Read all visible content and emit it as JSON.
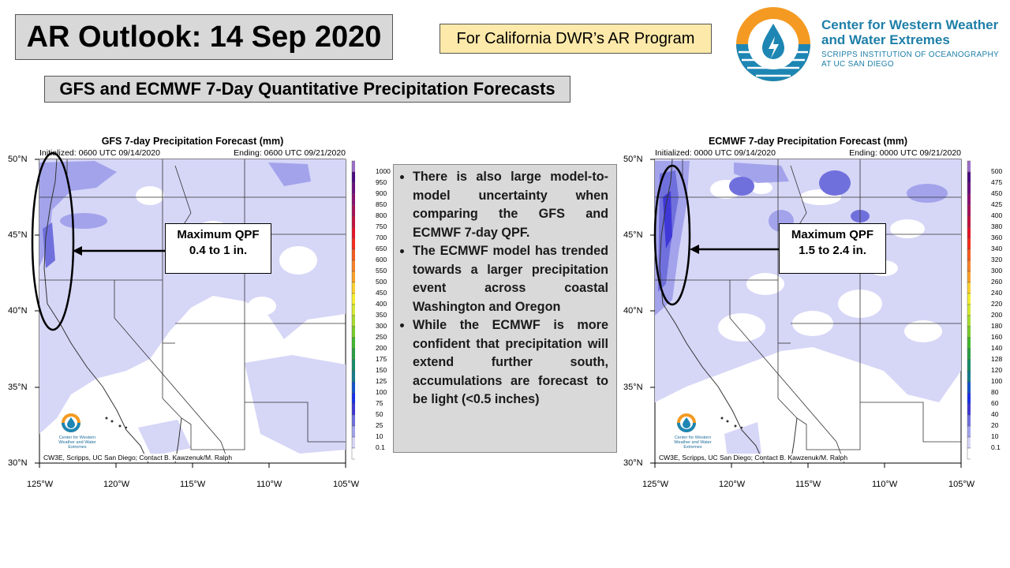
{
  "header": {
    "title": "AR Outlook: 14 Sep 2020",
    "program": "For California DWR’s AR Program",
    "subtitle": "GFS and ECMWF 7-Day Quantitative Precipitation Forecasts"
  },
  "org": {
    "name_line1": "Center for Western Weather",
    "name_line2": "and Water Extremes",
    "sub_line1": "SCRIPPS INSTITUTION OF OCEANOGRAPHY",
    "sub_line2": "AT UC SAN DIEGO",
    "logo_colors": {
      "orange": "#f49a22",
      "teal": "#1d86b3",
      "white": "#ffffff"
    }
  },
  "maps": {
    "lat_labels": [
      "50°N",
      "45°N",
      "40°N",
      "35°N",
      "30°N"
    ],
    "lon_labels": [
      "125°W",
      "120°W",
      "115°W",
      "110°W",
      "105°W"
    ],
    "credit": "CW3E, Scripps, UC San Diego; Contact B. Kawzenuk/M. Ralph",
    "mini_logo_text": "Center for Western Weather and Water Extremes",
    "gfs": {
      "title": "GFS 7-day Precipitation Forecast (mm)",
      "initialized": "Initialized: 0600 UTC 09/14/2020",
      "ending": "Ending: 0600 UTC 09/21/2020",
      "colorbar_levels": [
        "1000",
        "950",
        "900",
        "850",
        "800",
        "750",
        "700",
        "650",
        "600",
        "550",
        "500",
        "450",
        "400",
        "350",
        "300",
        "250",
        "200",
        "175",
        "150",
        "125",
        "100",
        "75",
        "50",
        "25",
        "10",
        "0.1"
      ],
      "callout_line1": "Maximum QPF",
      "callout_line2": "0.4 to 1 in."
    },
    "ecmwf": {
      "title": "ECMWF 7-day Precipitation Forecast (mm)",
      "initialized": "Initialized: 0000 UTC 09/14/2020",
      "ending": "Ending: 0000 UTC 09/21/2020",
      "colorbar_levels": [
        "500",
        "475",
        "450",
        "425",
        "400",
        "380",
        "360",
        "340",
        "320",
        "300",
        "260",
        "240",
        "220",
        "200",
        "180",
        "160",
        "140",
        "128",
        "120",
        "100",
        "80",
        "60",
        "40",
        "20",
        "10",
        "0.1"
      ],
      "callout_line1": "Maximum QPF",
      "callout_line2": "1.5 to 2.4 in."
    },
    "colorbar_colors": [
      "#9b6fc7",
      "#4b0b80",
      "#6a0e7e",
      "#8c1172",
      "#a4125a",
      "#c21340",
      "#e2162a",
      "#f42d1c",
      "#f45c1f",
      "#f6812a",
      "#f8a02a",
      "#fbd132",
      "#f4ee33",
      "#d5e934",
      "#a9da30",
      "#7acb2b",
      "#43b62d",
      "#2a9e45",
      "#188c68",
      "#157c8a",
      "#1553c9",
      "#1a30e8",
      "#3f38d6",
      "#7070dd",
      "#a3a3ec",
      "#d6d6f7",
      "#ffffff"
    ],
    "precip_colors": {
      "light": "#d6d6f7",
      "medium": "#a3a3ec",
      "heavy": "#7070dd"
    }
  },
  "bullets": [
    "There is also large model-to-model uncertainty when comparing the GFS and ECMWF 7-day QPF.",
    "The ECMWF model has trended towards a larger precipitation event across coastal Washington and Oregon",
    "While the ECMWF is more confident that precipitation will extend further south, accumulations are forecast to be light (<0.5 inches)"
  ]
}
